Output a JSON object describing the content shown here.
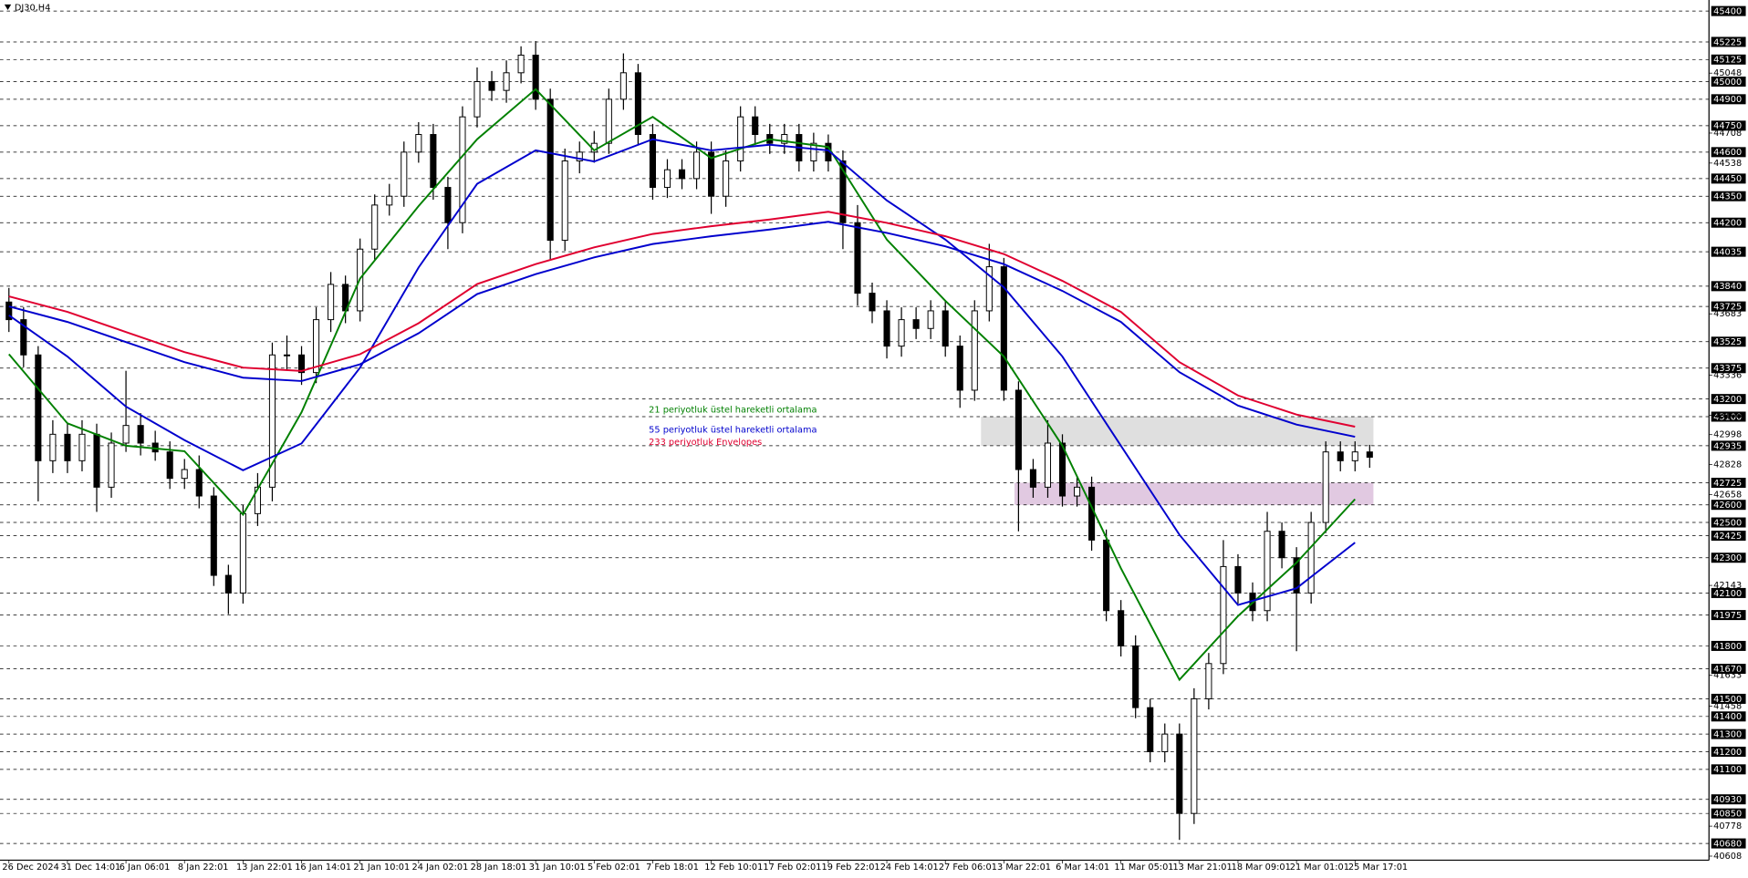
{
  "chart_data": {
    "type": "candlestick",
    "title": "DJ30,H4",
    "ylim": [
      40585,
      45450
    ],
    "yticks": [
      45048,
      44708,
      44538,
      43683,
      43336,
      43108,
      42998,
      42828,
      42658,
      42143,
      41633,
      41458,
      40778,
      40608
    ],
    "levels": [
      45400,
      45225,
      45125,
      45000,
      44900,
      44750,
      44600,
      44450,
      44350,
      44200,
      44035,
      43840,
      43725,
      43525,
      43375,
      43200,
      43100,
      42935,
      42725,
      42600,
      42500,
      42425,
      42300,
      42100,
      41975,
      41800,
      41670,
      41500,
      41400,
      41300,
      41200,
      41100,
      40930,
      40850,
      40680
    ],
    "xticks": [
      {
        "value": 0,
        "label": "26 Dec 2024"
      },
      {
        "value": 4,
        "label": "31 Dec 14:01"
      },
      {
        "value": 8,
        "label": "6 Jan 06:01"
      },
      {
        "value": 12,
        "label": "8 Jan 22:01"
      },
      {
        "value": 16,
        "label": "13 Jan 22:01"
      },
      {
        "value": 20,
        "label": "16 Jan 14:01"
      },
      {
        "value": 24,
        "label": "21 Jan 10:01"
      },
      {
        "value": 28,
        "label": "24 Jan 02:01"
      },
      {
        "value": 32,
        "label": "28 Jan 18:01"
      },
      {
        "value": 36,
        "label": "31 Jan 10:01"
      },
      {
        "value": 40,
        "label": "5 Feb 02:01"
      },
      {
        "value": 44,
        "label": "7 Feb 18:01"
      },
      {
        "value": 48,
        "label": "12 Feb 10:01"
      },
      {
        "value": 52,
        "label": "17 Feb 02:01"
      },
      {
        "value": 56,
        "label": "19 Feb 22:01"
      },
      {
        "value": 60,
        "label": "24 Feb 14:01"
      },
      {
        "value": 64,
        "label": "27 Feb 06:01"
      },
      {
        "value": 68,
        "label": "3 Mar 22:01"
      },
      {
        "value": 72,
        "label": "6 Mar 14:01"
      },
      {
        "value": 76,
        "label": "11 Mar 05:01"
      },
      {
        "value": 80,
        "label": "13 Mar 21:01"
      },
      {
        "value": 84,
        "label": "18 Mar 09:01"
      },
      {
        "value": 88,
        "label": "21 Mar 01:01"
      },
      {
        "value": 92,
        "label": "25 Mar 17:01"
      }
    ],
    "open": [
      43750,
      43650,
      43450,
      42850,
      43000,
      42850,
      43000,
      42700,
      42950,
      43050,
      42950,
      42900,
      42750,
      42800,
      42650,
      42200,
      42100,
      42550,
      42700,
      43450,
      43450,
      43350,
      43650,
      43850,
      43700,
      44050,
      44300,
      44350,
      44600,
      44700,
      44400,
      44200,
      44800,
      45000,
      44950,
      45050,
      45150,
      44900,
      44100,
      44550,
      44600,
      44650,
      44900,
      45050,
      44700,
      44400,
      44500,
      44450,
      44600,
      44350,
      44550,
      44800,
      44700,
      44650,
      44700,
      44550,
      44650,
      44550,
      44200,
      43800,
      43700,
      43500,
      43650,
      43600,
      43700,
      43500,
      43250,
      43700,
      43950,
      43250,
      42800,
      42700,
      42950,
      42650,
      42700,
      42400,
      42000,
      41800,
      41450,
      41200,
      41300,
      40850,
      41500,
      41700,
      42250,
      42100,
      42000,
      42450,
      42300,
      42100,
      42500,
      42900,
      42850,
      42900
    ],
    "high": [
      43830,
      43720,
      43500,
      43080,
      43060,
      43080,
      43060,
      43010,
      43360,
      43120,
      43020,
      42960,
      42860,
      42880,
      42700,
      42260,
      42600,
      42780,
      43520,
      43560,
      43500,
      43720,
      43920,
      43900,
      44110,
      44360,
      44420,
      44660,
      44770,
      44760,
      44460,
      44860,
      45080,
      45060,
      45120,
      45200,
      45230,
      44960,
      44620,
      44660,
      44720,
      44960,
      45160,
      45100,
      44760,
      44560,
      44560,
      44660,
      44660,
      44610,
      44860,
      44860,
      44760,
      44760,
      44760,
      44710,
      44700,
      44610,
      44300,
      43860,
      43760,
      43720,
      43720,
      43760,
      43760,
      43560,
      43760,
      44080,
      44000,
      43300,
      42860,
      43080,
      43000,
      42760,
      42760,
      42460,
      42060,
      41860,
      41500,
      41360,
      41360,
      41560,
      41760,
      42400,
      42320,
      42160,
      42560,
      42500,
      42360,
      42560,
      42960,
      42960,
      42960,
      42940
    ],
    "low": [
      43580,
      43380,
      42620,
      42780,
      42780,
      42790,
      42560,
      42640,
      42900,
      42880,
      42850,
      42690,
      42690,
      42580,
      42140,
      41980,
      42040,
      42480,
      42620,
      43360,
      43280,
      43290,
      43580,
      43630,
      43640,
      43990,
      44240,
      44290,
      44540,
      44330,
      44050,
      44140,
      44740,
      44890,
      44880,
      44990,
      44840,
      43990,
      44040,
      44480,
      44540,
      44590,
      44840,
      44640,
      44330,
      44340,
      44390,
      44390,
      44250,
      44290,
      44490,
      44640,
      44590,
      44590,
      44490,
      44490,
      44490,
      44050,
      43730,
      43630,
      43430,
      43440,
      43540,
      43540,
      43440,
      43150,
      43190,
      43640,
      43190,
      42450,
      42640,
      42640,
      42590,
      42590,
      42340,
      41940,
      41740,
      41390,
      41140,
      41140,
      40700,
      40790,
      41440,
      41640,
      42040,
      41940,
      41940,
      42240,
      41770,
      42040,
      42440,
      42790,
      42790,
      42810
    ],
    "close": [
      43650,
      43450,
      42850,
      43000,
      42850,
      43000,
      42700,
      42950,
      43050,
      42950,
      42900,
      42750,
      42800,
      42650,
      42200,
      42100,
      42550,
      42700,
      43450,
      43450,
      43350,
      43650,
      43850,
      43700,
      44050,
      44300,
      44350,
      44600,
      44700,
      44400,
      44200,
      44800,
      45000,
      44950,
      45050,
      45150,
      44900,
      44100,
      44550,
      44600,
      44650,
      44900,
      45050,
      44700,
      44400,
      44500,
      44450,
      44600,
      44350,
      44550,
      44800,
      44700,
      44650,
      44700,
      44550,
      44650,
      44550,
      44200,
      43800,
      43700,
      43500,
      43650,
      43600,
      43700,
      43500,
      43250,
      43700,
      43950,
      43250,
      42800,
      42700,
      42950,
      42650,
      42700,
      42400,
      42000,
      41800,
      41450,
      41200,
      41300,
      40850,
      41500,
      41700,
      42250,
      42100,
      42000,
      42450,
      42300,
      42100,
      42500,
      42900,
      42850,
      42900,
      42870
    ],
    "series": [
      {
        "name": "21 periyotluk üstel hareketli ortalama",
        "color": "#008000",
        "x": [
          0,
          4,
          8,
          12,
          16,
          20,
          24,
          28,
          32,
          36,
          40,
          44,
          48,
          52,
          56,
          60,
          64,
          68,
          72,
          76,
          80,
          84,
          88,
          92
        ],
        "values": [
          43454,
          43062,
          42935,
          42904,
          42544,
          43125,
          43883,
          44294,
          44673,
          44957,
          44610,
          44800,
          44566,
          44673,
          44629,
          44104,
          43757,
          43441,
          42935,
          42240,
          41608,
          41969,
          42272,
          42632
        ]
      },
      {
        "name": "55 periyotluk üstel hareketli ortalama",
        "color": "#0000cd",
        "x": [
          0,
          4,
          8,
          12,
          16,
          20,
          24,
          28,
          32,
          36,
          40,
          44,
          48,
          52,
          56,
          60,
          64,
          68,
          72,
          76,
          80,
          84,
          88,
          92
        ],
        "values": [
          43675,
          43441,
          43157,
          42967,
          42796,
          42948,
          43378,
          43946,
          44420,
          44610,
          44547,
          44673,
          44610,
          44642,
          44610,
          44326,
          44104,
          43833,
          43441,
          42935,
          42430,
          42032,
          42127,
          42386
        ]
      },
      {
        "name": "233 periyotluk Envelopes",
        "color": "#e00030",
        "x": [
          0,
          4,
          8,
          12,
          16,
          20,
          24,
          28,
          32,
          36,
          40,
          44,
          48,
          52,
          56,
          60,
          64,
          68,
          72,
          76,
          80,
          84,
          88,
          92
        ],
        "values": [
          43782,
          43694,
          43580,
          43466,
          43378,
          43359,
          43454,
          43630,
          43852,
          43965,
          44060,
          44136,
          44180,
          44218,
          44262,
          44199,
          44123,
          44022,
          43870,
          43694,
          43409,
          43220,
          43112,
          43043
        ]
      },
      {
        "color": "#0000cd",
        "x": [
          0,
          4,
          8,
          12,
          16,
          20,
          24,
          28,
          32,
          36,
          40,
          44,
          48,
          52,
          56,
          60,
          64,
          68,
          72,
          76,
          80,
          84,
          88,
          92
        ],
        "values": [
          43725,
          43637,
          43523,
          43409,
          43321,
          43302,
          43397,
          43573,
          43795,
          43908,
          44003,
          44079,
          44123,
          44161,
          44205,
          44142,
          44066,
          43965,
          43813,
          43637,
          43352,
          43163,
          43055,
          42986
        ]
      }
    ],
    "zones": [
      {
        "from": 43100,
        "to": 42935,
        "color": "#d9d9d9"
      },
      {
        "from": 42725,
        "to": 42600,
        "color": "#dcc0dc"
      }
    ]
  }
}
